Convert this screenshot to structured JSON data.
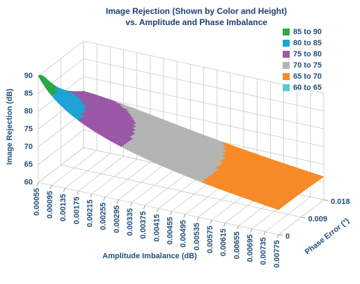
{
  "chart_data": {
    "type": "surface3d",
    "title": "Image Rejection (Shown by Color and Height)",
    "subtitle": "vs. Amplitude and Phase Imbalance",
    "xlabel": "Amplitude Imbalance (dB)",
    "ylabel": "Phase Error (°)",
    "zlabel": "Image Rejection (dB)",
    "xlim": [
      0.00055,
      0.00775
    ],
    "xticks": [
      0.00055,
      0.00095,
      0.00135,
      0.00175,
      0.00215,
      0.00255,
      0.00295,
      0.00335,
      0.00375,
      0.00415,
      0.00455,
      0.00495,
      0.00535,
      0.00575,
      0.00615,
      0.00655,
      0.00695,
      0.00735,
      0.00775
    ],
    "ylim": [
      0,
      0.018
    ],
    "yticks": [
      0,
      0.009,
      0.018
    ],
    "zlim": [
      60,
      90
    ],
    "zticks": [
      60,
      65,
      70,
      75,
      80,
      85,
      90
    ],
    "grid": true,
    "legend": "top-right",
    "series": [
      {
        "name": "85 to 90",
        "color": "#2aa84a",
        "range": [
          85,
          90
        ]
      },
      {
        "name": "80 to 85",
        "color": "#1fa3d6",
        "range": [
          80,
          85
        ]
      },
      {
        "name": "75 to 80",
        "color": "#9b58a6",
        "range": [
          75,
          80
        ]
      },
      {
        "name": "70 to 75",
        "color": "#b4b4b4",
        "range": [
          70,
          75
        ]
      },
      {
        "name": "65 to 70",
        "color": "#f68b28",
        "range": [
          65,
          70
        ]
      },
      {
        "name": "60 to 65",
        "color": "#5cc6d6",
        "range": [
          60,
          65
        ]
      }
    ]
  }
}
